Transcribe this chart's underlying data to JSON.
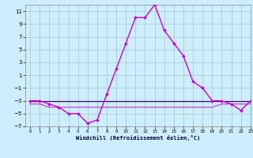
{
  "hours": [
    0,
    1,
    2,
    3,
    4,
    5,
    6,
    7,
    8,
    9,
    10,
    11,
    12,
    13,
    14,
    15,
    16,
    17,
    18,
    19,
    20,
    21,
    22,
    23
  ],
  "windchill": [
    -3,
    -3,
    -3.5,
    -4,
    -5,
    -5,
    -6.5,
    -6,
    -2,
    2,
    6,
    10,
    10,
    12,
    8,
    6,
    4,
    0,
    -1,
    -3,
    -3,
    -3.5,
    -4.5,
    -3
  ],
  "temp_line1": [
    -3,
    -3,
    -3,
    -3,
    -3,
    -3,
    -3,
    -3,
    -3,
    -3,
    -3,
    -3,
    -3,
    -3,
    -3,
    -3,
    -3,
    -3,
    -3,
    -3,
    -3,
    -3,
    -3,
    -3
  ],
  "temp_line2": [
    -3.5,
    -3.5,
    -4,
    -4,
    -4,
    -4,
    -4,
    -4,
    -4,
    -4,
    -4,
    -4,
    -4,
    -4,
    -4,
    -4,
    -4,
    -4,
    -4,
    -4,
    -3.5,
    -3.5,
    -3.5,
    -3.5
  ],
  "bg_color": "#cceeff",
  "grid_color": "#aacccc",
  "line1_color": "#cc00cc",
  "line2_color": "#440066",
  "line3_color": "#cc44cc",
  "xlabel": "Windchill (Refroidissement éolien,°C)",
  "ylim": [
    -7,
    12
  ],
  "xlim": [
    -0.5,
    23
  ],
  "yticks": [
    -7,
    -5,
    -3,
    -1,
    1,
    3,
    5,
    7,
    9,
    11
  ],
  "xticks": [
    0,
    1,
    2,
    3,
    4,
    5,
    6,
    7,
    8,
    9,
    10,
    11,
    12,
    13,
    14,
    15,
    16,
    17,
    18,
    19,
    20,
    21,
    22,
    23
  ]
}
